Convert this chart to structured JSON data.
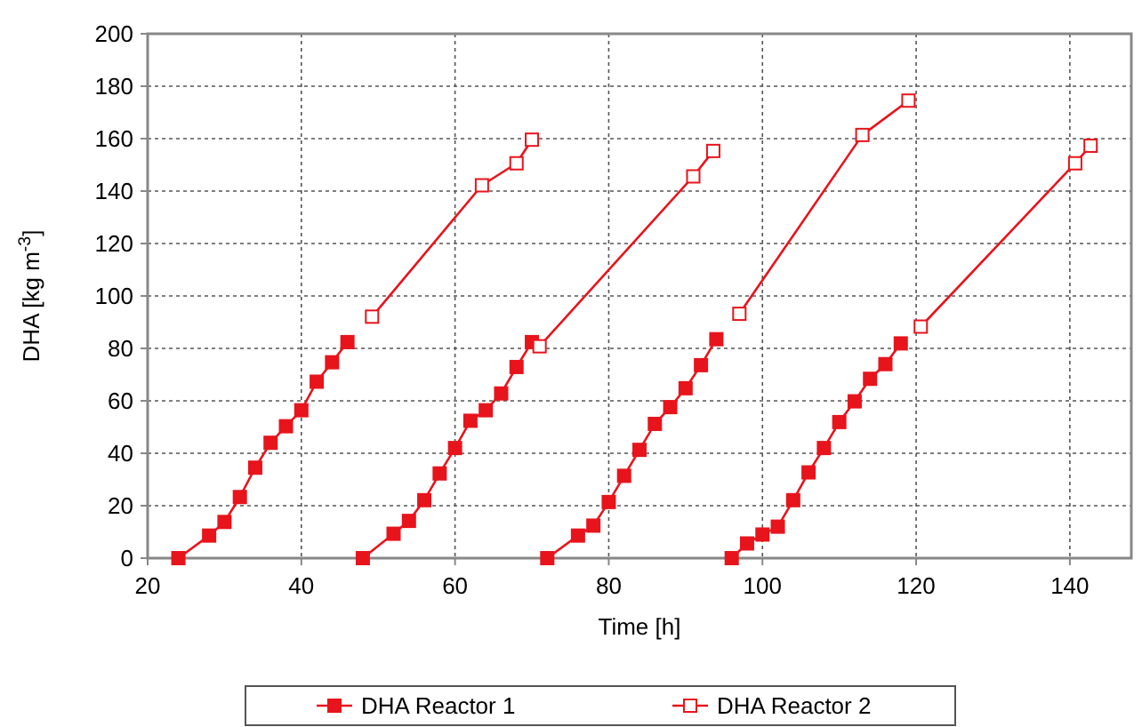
{
  "chart_data": {
    "type": "line",
    "xlabel": "Time [h]",
    "ylabel": "DHA [kg m$^{-3}$]",
    "xlim": [
      20,
      148
    ],
    "xticks": [
      20,
      40,
      60,
      80,
      100,
      120,
      140
    ],
    "ylim": [
      0,
      200
    ],
    "yticks": [
      0,
      20,
      40,
      60,
      80,
      100,
      120,
      140,
      160,
      180,
      200
    ],
    "grid": true,
    "legend": "bottom",
    "marker": "square",
    "line_style": "solid",
    "series": [
      {
        "name": "DHA Reactor 1",
        "color": "#e8141c",
        "x": [
          24,
          28,
          30,
          32,
          34,
          36,
          38,
          40,
          42,
          44,
          46,
          47,
          48,
          52,
          54,
          56,
          58,
          60,
          62,
          64,
          66,
          68,
          70,
          71,
          72,
          76,
          78,
          80,
          82,
          84,
          86,
          88,
          90,
          92,
          94,
          95,
          96,
          98,
          100,
          102,
          104,
          106,
          108,
          110,
          112,
          114,
          116,
          118
        ],
        "values": [
          0,
          8.6,
          13.8,
          23.3,
          34.5,
          44,
          50.3,
          56.4,
          67.3,
          74.7,
          82.4,
          null,
          0,
          9.3,
          14.2,
          22.1,
          32.3,
          42,
          52.4,
          56.4,
          62.8,
          72.9,
          82.4,
          null,
          0,
          8.6,
          12.4,
          21.4,
          31.4,
          41.3,
          51.2,
          57.6,
          64.8,
          73.6,
          83.5,
          null,
          0,
          5.6,
          9,
          12,
          22.1,
          32.7,
          42,
          51.9,
          59.8,
          68.4,
          74,
          81.9
        ]
      },
      {
        "name": "DHA Reactor 2",
        "color": "#e8141c",
        "x": [
          49.2,
          63.5,
          68,
          70,
          70.5,
          71,
          91,
          93.6,
          95,
          97,
          113,
          119,
          120,
          120.6,
          140.7,
          142.7
        ],
        "values": [
          92.1,
          142.2,
          150.6,
          159.6,
          null,
          80.8,
          145.6,
          155.3,
          null,
          93.2,
          161.4,
          174.5,
          null,
          88.3,
          150.6,
          157.3
        ]
      }
    ]
  }
}
